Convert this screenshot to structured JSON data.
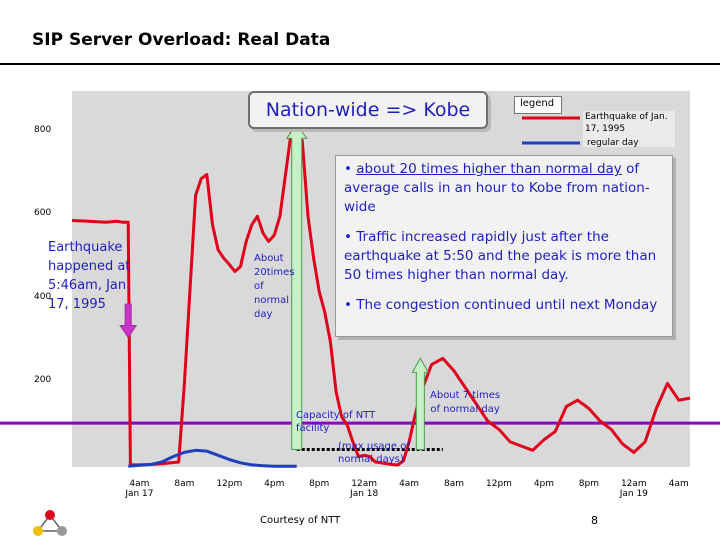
{
  "slide": {
    "title": "SIP Server Overload: Real Data",
    "courtesy": "Courtesy of NTT",
    "page_number": "8"
  },
  "annotations": {
    "headline": "Nation-wide => Kobe",
    "earthquake_note": [
      "Earthquake",
      "happened at",
      "5:46am, Jan.",
      "17, 1995"
    ],
    "about_20_times": [
      "About",
      "20times",
      "of",
      "normal",
      "day"
    ],
    "about_7_times": [
      "About 7 times",
      "of normal day"
    ],
    "capacity": [
      "Capacity of NTT",
      "facility"
    ],
    "max_usage": [
      "(max usage of",
      "normal days)"
    ],
    "callout": {
      "bullet_1": "about 20 times higher than normal day",
      "bullet_1_rest": " of average calls in an hour to Kobe from nation-wide",
      "bullet_2": "Traffic increased rapidly just after the earthquake at 5:50 and the peak is more than 50 times higher than normal day.",
      "bullet_3": "The congestion continued until next Monday",
      "bullet_symbol": "•"
    }
  },
  "legend": {
    "title": "legend",
    "entries": [
      {
        "label": "Earthquake of Jan. 17, 1995",
        "color": "#e0001b"
      },
      {
        "label": "regular day",
        "color": "#1f3fbf"
      }
    ]
  },
  "colors": {
    "earthquake_series": "#e0001b",
    "regular_series": "#1f3fbf",
    "capacity_line": "#8a00c8",
    "arrow_fill": "#c8f0c8",
    "arrow_stroke": "#4c9a4c",
    "quake_marker": "#cc33cc",
    "plot_bg": "#d9d9d9"
  },
  "chart_data": {
    "type": "line",
    "title": "",
    "xlabel": "",
    "ylabel": "",
    "x_tick_labels": [
      [
        "4am",
        "Jan 17"
      ],
      [
        "8am",
        ""
      ],
      [
        "12pm",
        ""
      ],
      [
        "4pm",
        ""
      ],
      [
        "8pm",
        ""
      ],
      [
        "12am",
        "Jan 18"
      ],
      [
        "4am",
        ""
      ],
      [
        "8am",
        ""
      ],
      [
        "12pm",
        ""
      ],
      [
        "4pm",
        ""
      ],
      [
        "8pm",
        ""
      ],
      [
        "12am",
        "Jan 19"
      ],
      [
        "4am",
        ""
      ]
    ],
    "x_unit": "hours since 4am Jan 17",
    "xlim": [
      -6,
      49
    ],
    "y_ticks": [
      "200",
      "400",
      "600",
      "800"
    ],
    "ylim": [
      0,
      900
    ],
    "capacity_level": 105,
    "max_usage_level": 42,
    "series": [
      {
        "name": "Earthquake of Jan. 17, 1995",
        "x": [
          -6,
          -4.5,
          -3,
          -2,
          -1.5,
          -1,
          -0.8,
          0,
          1,
          2,
          2.8,
          3.5,
          4,
          5,
          5.5,
          6,
          6.5,
          7,
          7.5,
          8,
          8.5,
          9,
          9.5,
          10,
          10.5,
          11,
          11.5,
          12,
          12.5,
          13,
          13.5,
          14,
          14.5,
          15,
          15.5,
          16,
          16.5,
          17,
          17.5,
          18,
          18.5,
          19,
          19.5,
          20,
          20.5,
          21,
          21.5,
          22,
          22.5,
          23,
          23.5,
          24,
          24.5,
          25,
          26,
          27,
          28,
          29,
          30,
          31,
          32,
          33,
          34,
          35,
          36,
          37,
          38,
          39,
          40,
          41,
          42,
          43,
          44,
          45,
          46,
          47,
          48,
          49
        ],
        "y": [
          590,
          588,
          586,
          588,
          586,
          586,
          5,
          5,
          6,
          8,
          10,
          12,
          200,
          650,
          690,
          700,
          580,
          520,
          500,
          485,
          468,
          480,
          540,
          580,
          600,
          560,
          540,
          555,
          600,
          700,
          800,
          820,
          780,
          600,
          500,
          420,
          370,
          300,
          180,
          120,
          100,
          60,
          25,
          28,
          25,
          12,
          10,
          8,
          6,
          5,
          15,
          60,
          120,
          175,
          245,
          260,
          230,
          190,
          150,
          110,
          90,
          60,
          50,
          40,
          65,
          85,
          145,
          160,
          140,
          110,
          90,
          55,
          35,
          60,
          140,
          200,
          160,
          165
        ]
      },
      {
        "name": "regular day",
        "x": [
          -1,
          0,
          1,
          2,
          3,
          4,
          5,
          6,
          7,
          8,
          9,
          10,
          11,
          12,
          13,
          14
        ],
        "y": [
          2,
          4,
          6,
          12,
          25,
          35,
          40,
          38,
          28,
          18,
          10,
          5,
          3,
          2,
          2,
          2
        ]
      }
    ]
  }
}
